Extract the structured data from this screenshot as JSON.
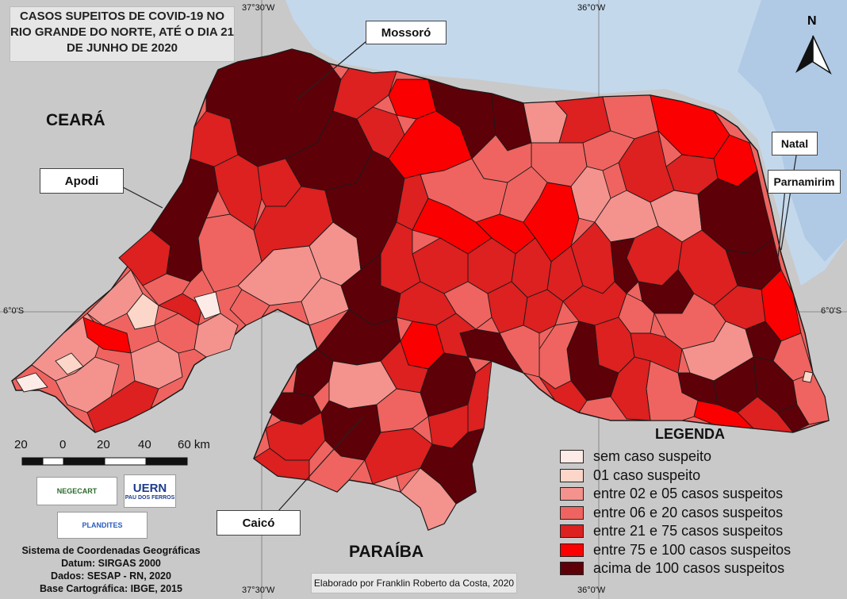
{
  "title_lines": [
    "CASOS SUPEITOS DE COVID-19 NO",
    "RIO GRANDE DO NORTE, ATÉ O DIA 21",
    "DE JUNHO DE 2020"
  ],
  "labels": {
    "mossoro": "Mossoró",
    "apodi": "Apodi",
    "natal": "Natal",
    "parnamirim": "Parnamirim",
    "caico": "Caicó"
  },
  "neighbors": {
    "ceara": "CEARÁ",
    "paraiba": "PARAÍBA"
  },
  "north_arrow": "N",
  "coords": {
    "top_lon_west": "37°30'W",
    "top_lon_east": "36°0'W",
    "bottom_lon_west": "37°30'W",
    "bottom_lon_east": "36°0'W",
    "lat_left": "6°0'S",
    "lat_right": "6°0'S"
  },
  "scale": {
    "ticks": [
      "20",
      "0",
      "20",
      "40",
      "60 km"
    ]
  },
  "legend": {
    "title": "LEGENDA",
    "items": [
      {
        "label": "sem caso suspeito",
        "color": "#fcebe6"
      },
      {
        "label": "01 caso suspeito",
        "color": "#fbd6c9"
      },
      {
        "label": "entre 02 e 05 casos suspeitos",
        "color": "#f4928d"
      },
      {
        "label": "entre 06 e 20 casos suspeitos",
        "color": "#ef6460"
      },
      {
        "label": "entre 21 e 75 casos suspeitos",
        "color": "#dd2020"
      },
      {
        "label": "entre 75 e 100 casos suspeitos",
        "color": "#fa0000"
      },
      {
        "label": "acima de 100 casos suspeitos",
        "color": "#5e0008"
      }
    ]
  },
  "logos": {
    "negecart": "NEGECART",
    "uern": "UERN",
    "uern_sub": "PAU DOS FERROS",
    "plandites": "PLANDITES"
  },
  "footer_lines": [
    "Sistema de Coordenadas Geográficas",
    "Datum: SIRGAS 2000",
    "Dados: SESAP - RN, 2020",
    "Base Cartográfica: IBGE, 2015"
  ],
  "credit": "Elaborado por Franklin Roberto da Costa, 2020",
  "colors": {
    "sea": "#c4d8ec",
    "land": "#c9c9c9",
    "border": "#1a1a1a"
  }
}
